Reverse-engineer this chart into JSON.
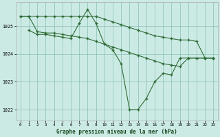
{
  "title": "Graphe pression niveau de la mer (hPa)",
  "background_color": "#cceae4",
  "grid_color": "#88bfb4",
  "line_color": "#2d6b35",
  "xlim": [
    -0.5,
    23.5
  ],
  "ylim": [
    1021.6,
    1025.85
  ],
  "yticks": [
    1022,
    1023,
    1024,
    1025
  ],
  "xticks": [
    0,
    1,
    2,
    3,
    4,
    5,
    6,
    7,
    8,
    9,
    10,
    11,
    12,
    13,
    14,
    15,
    16,
    17,
    18,
    19,
    20,
    21,
    22,
    23
  ],
  "line1_x": [
    0,
    1,
    2,
    3,
    4,
    5,
    6,
    7,
    8,
    9,
    10,
    11,
    12,
    13,
    14,
    15,
    16,
    17,
    18,
    19,
    20,
    21,
    22,
    23
  ],
  "line1_y": [
    1025.35,
    1025.35,
    1025.35,
    1025.35,
    1025.35,
    1025.35,
    1025.35,
    1025.35,
    1025.35,
    1025.35,
    1025.25,
    1025.15,
    1025.05,
    1024.95,
    1024.85,
    1024.75,
    1024.65,
    1024.6,
    1024.55,
    1024.5,
    1024.5,
    1024.45,
    1023.85,
    1023.85
  ],
  "line2_x": [
    0,
    1,
    2,
    3,
    4,
    5,
    6,
    7,
    8,
    9,
    10,
    11,
    12,
    13,
    14,
    15,
    16,
    17,
    18,
    19,
    20,
    21,
    22,
    23
  ],
  "line2_y": [
    1025.35,
    1025.35,
    1024.8,
    1024.75,
    1024.75,
    1024.7,
    1024.65,
    1024.6,
    1024.55,
    1024.45,
    1024.35,
    1024.25,
    1024.15,
    1024.05,
    1023.95,
    1023.85,
    1023.75,
    1023.65,
    1023.6,
    1023.55,
    1023.85,
    1023.85,
    1023.85,
    1023.85
  ],
  "line3_x": [
    1,
    2,
    3,
    4,
    5,
    6,
    7,
    8,
    9,
    10,
    11,
    12,
    13,
    14,
    15,
    16,
    17,
    18,
    19,
    20,
    21,
    22,
    23
  ],
  "line3_y": [
    1024.85,
    1024.7,
    1024.7,
    1024.65,
    1024.6,
    1024.55,
    1025.1,
    1025.6,
    1025.1,
    1024.35,
    1024.15,
    1023.65,
    1022.0,
    1022.0,
    1022.4,
    1023.0,
    1023.3,
    1023.25,
    1023.85,
    1023.85,
    1023.85,
    1023.85,
    1023.85
  ]
}
